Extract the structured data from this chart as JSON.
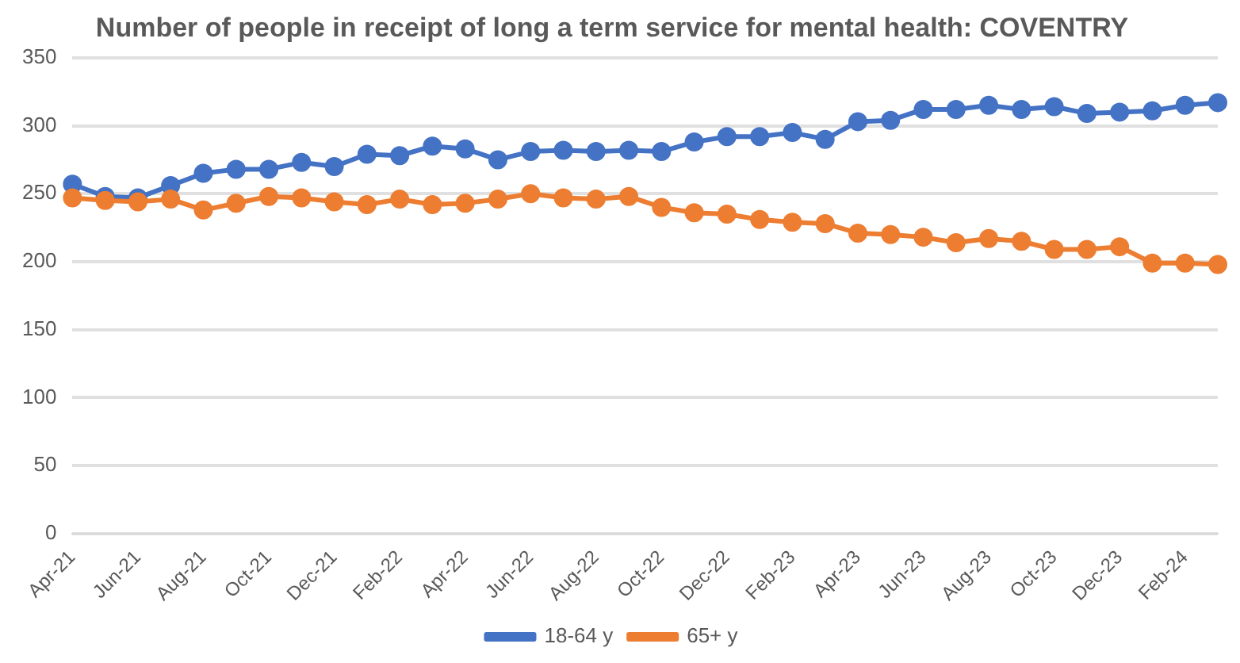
{
  "chart_data": {
    "type": "line",
    "title": "Number of people in receipt of long a term service for mental health: COVENTRY",
    "categories": [
      "Apr-21",
      null,
      "Jun-21",
      null,
      "Aug-21",
      null,
      "Oct-21",
      null,
      "Dec-21",
      null,
      "Feb-22",
      null,
      "Apr-22",
      null,
      "Jun-22",
      null,
      "Aug-22",
      null,
      "Oct-22",
      null,
      "Dec-22",
      null,
      "Feb-23",
      null,
      "Apr-23",
      null,
      "Jun-23",
      null,
      "Aug-23",
      null,
      "Oct-23",
      null,
      "Dec-23",
      null,
      "Feb-24",
      null
    ],
    "series": [
      {
        "name": "18-64 y",
        "color": "#4472c4",
        "values": [
          257,
          248,
          247,
          256,
          265,
          268,
          268,
          273,
          270,
          279,
          278,
          285,
          283,
          275,
          281,
          282,
          281,
          282,
          281,
          288,
          292,
          292,
          295,
          290,
          303,
          304,
          312,
          312,
          315,
          312,
          314,
          309,
          310,
          311,
          315,
          317
        ]
      },
      {
        "name": "65+ y",
        "color": "#ed7d31",
        "values": [
          247,
          245,
          244,
          246,
          238,
          243,
          248,
          247,
          244,
          242,
          246,
          242,
          243,
          246,
          250,
          247,
          246,
          248,
          240,
          236,
          235,
          231,
          229,
          228,
          221,
          220,
          218,
          214,
          217,
          215,
          209,
          209,
          211,
          199,
          199,
          198
        ]
      }
    ],
    "ylim": [
      0,
      350
    ],
    "yticks": [
      0,
      50,
      100,
      150,
      200,
      250,
      300,
      350
    ],
    "grid": "y",
    "legend": "bottom",
    "marker": "circle",
    "line_style": "solid"
  }
}
